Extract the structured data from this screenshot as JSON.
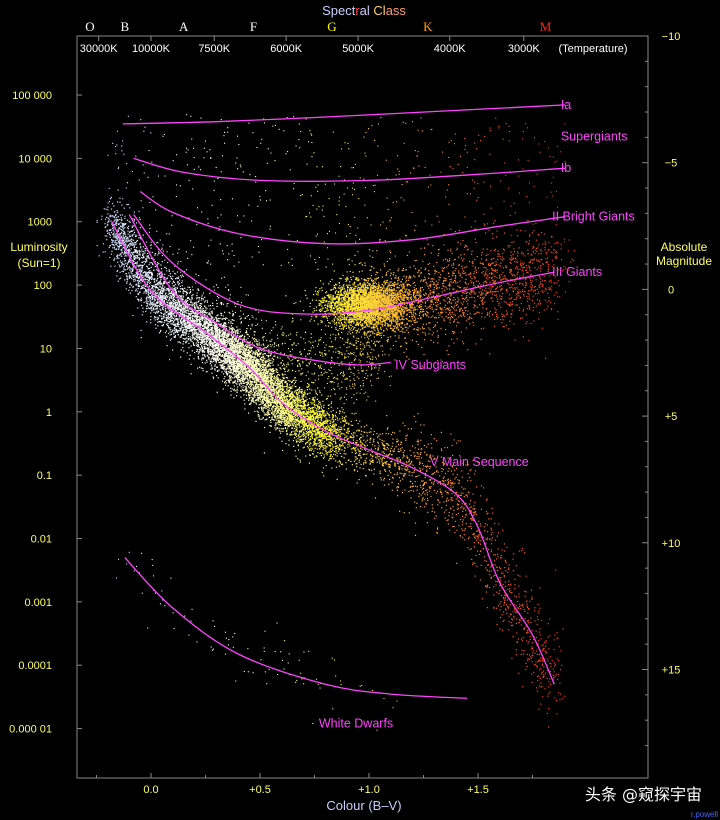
{
  "chart_data": {
    "type": "scatter",
    "title": "Spectral Class",
    "title_parts": [
      "Spect",
      "r",
      "al ",
      "Cl",
      "ass"
    ],
    "xlabel": "Colour (B–V)",
    "ylabel": "Luminosity (Sun=1)",
    "ylabel_lines": [
      "Luminosity",
      "(Sun=1)"
    ],
    "ylabel_right": "Absolute Magnitude",
    "ylabel_right_lines": [
      "Absolute",
      "Magnitude"
    ],
    "x_ticks": [
      {
        "value": 0.0,
        "label": "0.0"
      },
      {
        "value": 0.5,
        "label": "+0.5"
      },
      {
        "value": 1.0,
        "label": "+1.0"
      },
      {
        "value": 1.5,
        "label": "+1.5"
      }
    ],
    "y_scale": "log",
    "y_ticks": [
      {
        "value": 100000,
        "label": "100 000"
      },
      {
        "value": 10000,
        "label": "10 000"
      },
      {
        "value": 1000,
        "label": "1000"
      },
      {
        "value": 100,
        "label": "100"
      },
      {
        "value": 10,
        "label": "10"
      },
      {
        "value": 1,
        "label": "1"
      },
      {
        "value": 0.1,
        "label": "0.1"
      },
      {
        "value": 0.01,
        "label": "0.01"
      },
      {
        "value": 0.001,
        "label": "0.001"
      },
      {
        "value": 0.0001,
        "label": "0.0001"
      },
      {
        "value": 1e-05,
        "label": "0.000 01"
      }
    ],
    "magnitude_ticks": [
      {
        "value": -10,
        "label": "−10"
      },
      {
        "value": -5,
        "label": "−5"
      },
      {
        "value": 0,
        "label": "0"
      },
      {
        "value": 5,
        "label": "+5"
      },
      {
        "value": 10,
        "label": "+10"
      },
      {
        "value": 15,
        "label": "+15"
      }
    ],
    "spectral_classes": [
      {
        "label": "O",
        "bv": -0.28,
        "color": "#ffffff"
      },
      {
        "label": "B",
        "bv": -0.12,
        "color": "#ffffff"
      },
      {
        "label": "A",
        "bv": 0.15,
        "color": "#ffffff"
      },
      {
        "label": "F",
        "bv": 0.47,
        "color": "#ffffff"
      },
      {
        "label": "G",
        "bv": 0.83,
        "color": "#ffff00"
      },
      {
        "label": "K",
        "bv": 1.27,
        "color": "#ff9900"
      },
      {
        "label": "M",
        "bv": 1.81,
        "color": "#ff2222"
      }
    ],
    "temperature_ticks": [
      {
        "label": "30000K",
        "bv": -0.24
      },
      {
        "label": "10000K",
        "bv": 0.0
      },
      {
        "label": "7500K",
        "bv": 0.29
      },
      {
        "label": "6000K",
        "bv": 0.62
      },
      {
        "label": "5000K",
        "bv": 0.95
      },
      {
        "label": "4000K",
        "bv": 1.37
      },
      {
        "label": "3000K",
        "bv": 1.71
      }
    ],
    "temperature_caption": "(Temperature)",
    "luminosity_classes": [
      {
        "name": "Ia",
        "label": "Ia",
        "points": [
          [
            -0.13,
            35000
          ],
          [
            0.3,
            38000
          ],
          [
            0.8,
            45000
          ],
          [
            1.3,
            55000
          ],
          [
            1.9,
            70000
          ]
        ]
      },
      {
        "name": "Ib",
        "label": "Ib",
        "points": [
          [
            -0.08,
            10000
          ],
          [
            0.15,
            6000
          ],
          [
            0.5,
            4500
          ],
          [
            1.0,
            4500
          ],
          [
            1.5,
            5600
          ],
          [
            1.9,
            7000
          ]
        ]
      },
      {
        "name": "II",
        "label": "II Bright Giants",
        "points": [
          [
            -0.05,
            3000
          ],
          [
            0.1,
            1400
          ],
          [
            0.4,
            650
          ],
          [
            0.8,
            450
          ],
          [
            1.2,
            520
          ],
          [
            1.6,
            850
          ],
          [
            1.9,
            1200
          ]
        ]
      },
      {
        "name": "III",
        "label": "III    Giants",
        "points": [
          [
            -0.08,
            1300
          ],
          [
            0.1,
            220
          ],
          [
            0.4,
            50
          ],
          [
            0.7,
            35
          ],
          [
            1.0,
            40
          ],
          [
            1.3,
            65
          ],
          [
            1.6,
            110
          ],
          [
            1.85,
            160
          ]
        ]
      },
      {
        "name": "IV",
        "label": "IV  Subgiants",
        "points": [
          [
            -0.1,
            1300
          ],
          [
            0.1,
            80
          ],
          [
            0.3,
            25
          ],
          [
            0.5,
            10
          ],
          [
            0.75,
            6.5
          ],
          [
            0.95,
            5.5
          ],
          [
            1.1,
            6
          ]
        ]
      },
      {
        "name": "V",
        "label": "V  Main Sequence",
        "points": [
          [
            -0.18,
            1000
          ],
          [
            0.0,
            80
          ],
          [
            0.25,
            18
          ],
          [
            0.45,
            5
          ],
          [
            0.6,
            1.4
          ],
          [
            0.8,
            0.5
          ],
          [
            1.0,
            0.25
          ],
          [
            1.2,
            0.13
          ],
          [
            1.4,
            0.05
          ],
          [
            1.5,
            0.015
          ],
          [
            1.6,
            0.002
          ],
          [
            1.75,
            0.0003
          ],
          [
            1.85,
            5e-05
          ]
        ]
      },
      {
        "name": "WD",
        "label": "White Dwarfs",
        "points": [
          [
            -0.12,
            0.005
          ],
          [
            0.1,
            0.0008
          ],
          [
            0.4,
            0.00015
          ],
          [
            0.8,
            5e-05
          ],
          [
            1.1,
            3.5e-05
          ],
          [
            1.45,
            3e-05
          ]
        ]
      }
    ],
    "luminosity_class_labels": [
      {
        "text": "Ia",
        "bv": 1.88,
        "lum": 70000
      },
      {
        "text": "Supergiants",
        "bv": 1.88,
        "lum": 22000
      },
      {
        "text": "Ib",
        "bv": 1.88,
        "lum": 7000
      },
      {
        "text": "II Bright Giants",
        "bv": 1.84,
        "lum": 1200
      },
      {
        "text": "III    Giants",
        "bv": 1.84,
        "lum": 160
      },
      {
        "text": "IV  Subgiants",
        "bv": 1.12,
        "lum": 5.5
      },
      {
        "text": "V  Main Sequence",
        "bv": 1.28,
        "lum": 0.16
      },
      {
        "text": "White Dwarfs",
        "bv": 0.77,
        "lum": 1.2e-05
      }
    ],
    "star_populations": [
      {
        "name": "main-sequence",
        "count": 9000
      },
      {
        "name": "red-giant-clump",
        "count": 3000
      },
      {
        "name": "giant-branch",
        "count": 1800
      },
      {
        "name": "subgiants",
        "count": 900
      },
      {
        "name": "supergiants",
        "count": 500
      },
      {
        "name": "white-dwarfs",
        "count": 90
      }
    ],
    "xlim": [
      -0.33,
      2.07
    ],
    "ylim_magnitude": [
      -10,
      18.5
    ],
    "grid": false,
    "background": "#000000",
    "curve_color": "#ff44ff"
  },
  "watermark": "头条 @窥探宇宙",
  "credit": "r.powell"
}
